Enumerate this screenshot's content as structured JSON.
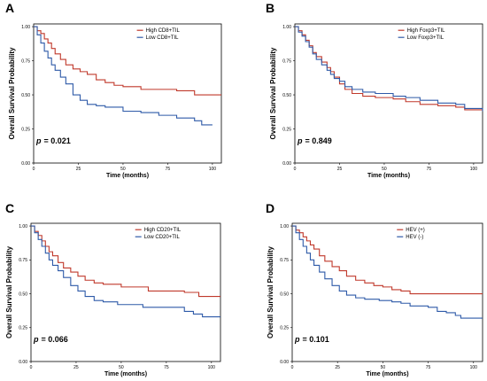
{
  "chart_data": [
    {
      "type": "line",
      "panel": "A",
      "ylabel": "Overall Survival Probability",
      "xlabel": "Time (months)",
      "xlim": [
        0,
        105
      ],
      "ylim": [
        0,
        1.02
      ],
      "xticks": [
        "0",
        "25",
        "50",
        "75",
        "100"
      ],
      "yticks": [
        "0.00",
        "0.25",
        "0.50",
        "0.75",
        "1.00"
      ],
      "legend_position": "top-right",
      "pvalue_prefix": "p",
      "pvalue_text": "= 0.021",
      "series": [
        {
          "name": "High CD8+TIL",
          "color": "#c0392b",
          "points": [
            [
              0,
              1.0
            ],
            [
              2,
              0.97
            ],
            [
              4,
              0.95
            ],
            [
              6,
              0.91
            ],
            [
              8,
              0.88
            ],
            [
              10,
              0.84
            ],
            [
              12,
              0.8
            ],
            [
              15,
              0.76
            ],
            [
              18,
              0.72
            ],
            [
              22,
              0.69
            ],
            [
              26,
              0.67
            ],
            [
              30,
              0.65
            ],
            [
              35,
              0.61
            ],
            [
              40,
              0.59
            ],
            [
              45,
              0.57
            ],
            [
              50,
              0.56
            ],
            [
              55,
              0.56
            ],
            [
              60,
              0.54
            ],
            [
              70,
              0.54
            ],
            [
              80,
              0.53
            ],
            [
              90,
              0.5
            ],
            [
              105,
              0.5
            ]
          ]
        },
        {
          "name": "Low CD8+TIL",
          "color": "#2e5aa8",
          "points": [
            [
              0,
              1.0
            ],
            [
              2,
              0.94
            ],
            [
              4,
              0.88
            ],
            [
              6,
              0.82
            ],
            [
              8,
              0.77
            ],
            [
              10,
              0.72
            ],
            [
              12,
              0.68
            ],
            [
              15,
              0.63
            ],
            [
              18,
              0.58
            ],
            [
              22,
              0.5
            ],
            [
              26,
              0.46
            ],
            [
              30,
              0.43
            ],
            [
              35,
              0.42
            ],
            [
              40,
              0.41
            ],
            [
              50,
              0.38
            ],
            [
              60,
              0.37
            ],
            [
              70,
              0.35
            ],
            [
              80,
              0.33
            ],
            [
              90,
              0.31
            ],
            [
              94,
              0.28
            ],
            [
              100,
              0.28
            ]
          ]
        }
      ]
    },
    {
      "type": "line",
      "panel": "B",
      "ylabel": "Overall Survival Probability",
      "xlabel": "Time (months)",
      "xlim": [
        0,
        105
      ],
      "ylim": [
        0,
        1.02
      ],
      "xticks": [
        "0",
        "25",
        "50",
        "75",
        "100"
      ],
      "yticks": [
        "0.00",
        "0.25",
        "0.50",
        "0.75",
        "1.00"
      ],
      "legend_position": "top-right",
      "pvalue_prefix": "p",
      "pvalue_text": "= 0.849",
      "series": [
        {
          "name": "High Foxp3+TIL",
          "color": "#c0392b",
          "points": [
            [
              0,
              1.0
            ],
            [
              2,
              0.97
            ],
            [
              4,
              0.94
            ],
            [
              6,
              0.9
            ],
            [
              8,
              0.86
            ],
            [
              10,
              0.81
            ],
            [
              12,
              0.78
            ],
            [
              15,
              0.74
            ],
            [
              18,
              0.7
            ],
            [
              20,
              0.67
            ],
            [
              22,
              0.63
            ],
            [
              25,
              0.58
            ],
            [
              28,
              0.54
            ],
            [
              32,
              0.51
            ],
            [
              38,
              0.49
            ],
            [
              45,
              0.48
            ],
            [
              55,
              0.47
            ],
            [
              62,
              0.45
            ],
            [
              70,
              0.43
            ],
            [
              80,
              0.42
            ],
            [
              90,
              0.41
            ],
            [
              95,
              0.39
            ],
            [
              105,
              0.39
            ]
          ]
        },
        {
          "name": "Low Foxp3+TIL",
          "color": "#2e5aa8",
          "points": [
            [
              0,
              1.0
            ],
            [
              2,
              0.96
            ],
            [
              4,
              0.93
            ],
            [
              6,
              0.89
            ],
            [
              8,
              0.85
            ],
            [
              10,
              0.8
            ],
            [
              12,
              0.76
            ],
            [
              15,
              0.72
            ],
            [
              18,
              0.68
            ],
            [
              20,
              0.65
            ],
            [
              22,
              0.62
            ],
            [
              25,
              0.6
            ],
            [
              28,
              0.56
            ],
            [
              32,
              0.54
            ],
            [
              38,
              0.52
            ],
            [
              45,
              0.51
            ],
            [
              55,
              0.49
            ],
            [
              62,
              0.48
            ],
            [
              70,
              0.46
            ],
            [
              80,
              0.44
            ],
            [
              90,
              0.43
            ],
            [
              95,
              0.4
            ],
            [
              105,
              0.38
            ]
          ]
        }
      ]
    },
    {
      "type": "line",
      "panel": "C",
      "ylabel": "Overall Survival Probability",
      "xlabel": "Time (months)",
      "xlim": [
        0,
        105
      ],
      "ylim": [
        0,
        1.02
      ],
      "xticks": [
        "0",
        "25",
        "50",
        "75",
        "100"
      ],
      "yticks": [
        "0.00",
        "0.25",
        "0.50",
        "0.75",
        "1.00"
      ],
      "legend_position": "top-right",
      "pvalue_prefix": "p",
      "pvalue_text": "= 0.066",
      "series": [
        {
          "name": "High CD20+TIL",
          "color": "#c0392b",
          "points": [
            [
              0,
              1.0
            ],
            [
              2,
              0.96
            ],
            [
              4,
              0.93
            ],
            [
              6,
              0.89
            ],
            [
              8,
              0.85
            ],
            [
              10,
              0.81
            ],
            [
              12,
              0.78
            ],
            [
              15,
              0.73
            ],
            [
              18,
              0.69
            ],
            [
              22,
              0.66
            ],
            [
              26,
              0.63
            ],
            [
              30,
              0.6
            ],
            [
              35,
              0.58
            ],
            [
              40,
              0.57
            ],
            [
              50,
              0.55
            ],
            [
              60,
              0.55
            ],
            [
              65,
              0.52
            ],
            [
              75,
              0.52
            ],
            [
              85,
              0.51
            ],
            [
              93,
              0.48
            ],
            [
              105,
              0.48
            ]
          ]
        },
        {
          "name": "Low CD20+TIL",
          "color": "#2e5aa8",
          "points": [
            [
              0,
              1.0
            ],
            [
              2,
              0.95
            ],
            [
              4,
              0.9
            ],
            [
              6,
              0.85
            ],
            [
              8,
              0.8
            ],
            [
              10,
              0.75
            ],
            [
              12,
              0.71
            ],
            [
              15,
              0.67
            ],
            [
              18,
              0.62
            ],
            [
              22,
              0.56
            ],
            [
              26,
              0.52
            ],
            [
              30,
              0.48
            ],
            [
              35,
              0.45
            ],
            [
              40,
              0.44
            ],
            [
              48,
              0.42
            ],
            [
              55,
              0.42
            ],
            [
              62,
              0.4
            ],
            [
              75,
              0.4
            ],
            [
              85,
              0.37
            ],
            [
              90,
              0.35
            ],
            [
              95,
              0.33
            ],
            [
              105,
              0.33
            ]
          ]
        }
      ]
    },
    {
      "type": "line",
      "panel": "D",
      "ylabel": "Overall Survival Probability",
      "xlabel": "Time (months)",
      "xlim": [
        0,
        105
      ],
      "ylim": [
        0,
        1.02
      ],
      "xticks": [
        "0",
        "25",
        "50",
        "75",
        "100"
      ],
      "yticks": [
        "0.00",
        "0.25",
        "0.50",
        "0.75",
        "1.00"
      ],
      "legend_position": "top-right",
      "pvalue_prefix": "p",
      "pvalue_text": "= 0.101",
      "series": [
        {
          "name": "HEV (+)",
          "color": "#c0392b",
          "points": [
            [
              0,
              1.0
            ],
            [
              2,
              0.97
            ],
            [
              4,
              0.95
            ],
            [
              6,
              0.92
            ],
            [
              8,
              0.89
            ],
            [
              10,
              0.86
            ],
            [
              12,
              0.83
            ],
            [
              15,
              0.78
            ],
            [
              18,
              0.74
            ],
            [
              22,
              0.7
            ],
            [
              26,
              0.67
            ],
            [
              30,
              0.63
            ],
            [
              35,
              0.6
            ],
            [
              40,
              0.58
            ],
            [
              45,
              0.56
            ],
            [
              50,
              0.55
            ],
            [
              55,
              0.53
            ],
            [
              60,
              0.52
            ],
            [
              65,
              0.5
            ],
            [
              75,
              0.5
            ],
            [
              105,
              0.5
            ]
          ]
        },
        {
          "name": "HEV (-)",
          "color": "#2e5aa8",
          "points": [
            [
              0,
              1.0
            ],
            [
              2,
              0.95
            ],
            [
              4,
              0.9
            ],
            [
              6,
              0.85
            ],
            [
              8,
              0.8
            ],
            [
              10,
              0.75
            ],
            [
              12,
              0.71
            ],
            [
              15,
              0.66
            ],
            [
              18,
              0.61
            ],
            [
              22,
              0.56
            ],
            [
              26,
              0.52
            ],
            [
              30,
              0.49
            ],
            [
              35,
              0.47
            ],
            [
              40,
              0.46
            ],
            [
              48,
              0.45
            ],
            [
              55,
              0.44
            ],
            [
              60,
              0.43
            ],
            [
              65,
              0.41
            ],
            [
              75,
              0.4
            ],
            [
              80,
              0.37
            ],
            [
              85,
              0.36
            ],
            [
              90,
              0.34
            ],
            [
              93,
              0.32
            ],
            [
              105,
              0.32
            ]
          ]
        }
      ]
    }
  ]
}
